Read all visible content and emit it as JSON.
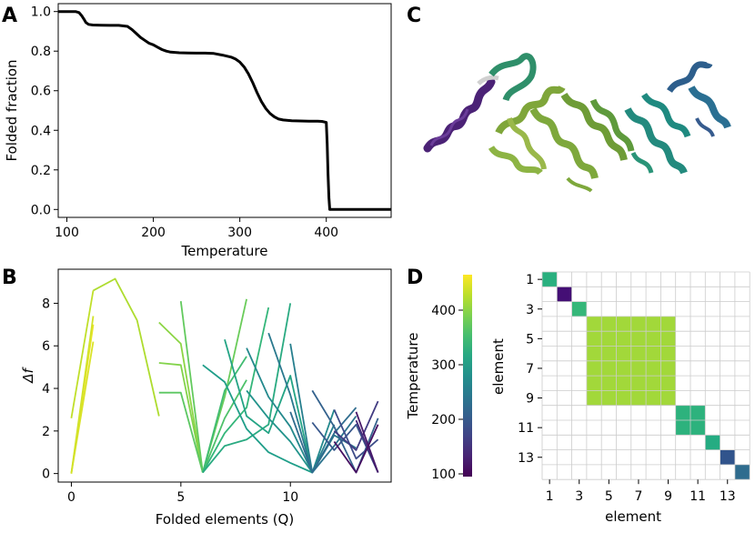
{
  "panels": {
    "a": "A",
    "b": "B",
    "c": "C",
    "d": "D"
  },
  "chart_data": [
    {
      "panel": "A",
      "type": "line",
      "title": "",
      "xlabel": "Temperature",
      "ylabel": "Folded fraction",
      "xlim": [
        90,
        475
      ],
      "ylim": [
        -0.04,
        1.04
      ],
      "xticks": [
        100,
        200,
        300,
        400
      ],
      "yticks": [
        0.0,
        0.2,
        0.4,
        0.6,
        0.8,
        1.0
      ],
      "series": [
        {
          "name": "folded fraction",
          "color": "#000000",
          "x": [
            90,
            110,
            114,
            117,
            120,
            122,
            125,
            130,
            140,
            150,
            160,
            170,
            175,
            180,
            185,
            190,
            195,
            200,
            205,
            210,
            215,
            220,
            230,
            240,
            250,
            260,
            270,
            280,
            290,
            295,
            300,
            305,
            310,
            315,
            320,
            325,
            330,
            335,
            340,
            345,
            350,
            360,
            370,
            380,
            390,
            395,
            400,
            401,
            402,
            403,
            404,
            420,
            450,
            475
          ],
          "y": [
            1.0,
            1.0,
            0.995,
            0.98,
            0.96,
            0.945,
            0.935,
            0.932,
            0.931,
            0.93,
            0.93,
            0.925,
            0.91,
            0.89,
            0.87,
            0.855,
            0.84,
            0.832,
            0.82,
            0.808,
            0.8,
            0.795,
            0.792,
            0.791,
            0.79,
            0.79,
            0.788,
            0.78,
            0.77,
            0.76,
            0.745,
            0.72,
            0.685,
            0.64,
            0.59,
            0.545,
            0.51,
            0.485,
            0.468,
            0.457,
            0.452,
            0.448,
            0.447,
            0.446,
            0.446,
            0.445,
            0.44,
            0.33,
            0.18,
            0.06,
            0.0,
            0.0,
            0.0,
            0.0
          ]
        }
      ]
    },
    {
      "panel": "B",
      "type": "line",
      "title": "",
      "xlabel": "Folded elements (Q)",
      "ylabel": "Δf",
      "xlim": [
        -0.6,
        14.6
      ],
      "ylim": [
        -0.4,
        9.6
      ],
      "xticks": [
        0,
        5,
        10
      ],
      "yticks": [
        0,
        2,
        4,
        6,
        8
      ],
      "colorbar": {
        "label": "Temperature",
        "range": [
          95,
          465
        ],
        "ticks": [
          100,
          200,
          300,
          400
        ],
        "colormap": "viridis"
      },
      "segments": [
        {
          "t": 455,
          "x": [
            0,
            1
          ],
          "y": [
            0,
            7.0
          ]
        },
        {
          "t": 445,
          "x": [
            0,
            1
          ],
          "y": [
            0,
            6.2
          ]
        },
        {
          "t": 440,
          "x": [
            0,
            1
          ],
          "y": [
            0,
            7.4
          ]
        },
        {
          "t": 430,
          "x": [
            0,
            1
          ],
          "y": [
            2.6,
            8.6
          ]
        },
        {
          "t": 420,
          "x": [
            1,
            2,
            3,
            4
          ],
          "y": [
            8.6,
            9.15,
            7.2,
            2.7
          ]
        },
        {
          "t": 400,
          "x": [
            4,
            5,
            6
          ],
          "y": [
            7.1,
            6.1,
            0.05
          ]
        },
        {
          "t": 395,
          "x": [
            4,
            5,
            6
          ],
          "y": [
            5.2,
            5.1,
            0.05
          ]
        },
        {
          "t": 380,
          "x": [
            6,
            7,
            8
          ],
          "y": [
            0.05,
            3.6,
            8.2
          ]
        },
        {
          "t": 375,
          "x": [
            5,
            6
          ],
          "y": [
            8.1,
            0.05
          ]
        },
        {
          "t": 370,
          "x": [
            4,
            5,
            6
          ],
          "y": [
            3.8,
            3.8,
            0.05
          ]
        },
        {
          "t": 360,
          "x": [
            6,
            7,
            8
          ],
          "y": [
            0.05,
            2.6,
            4.4
          ]
        },
        {
          "t": 350,
          "x": [
            6,
            7,
            8
          ],
          "y": [
            0.05,
            3.9,
            5.5
          ]
        },
        {
          "t": 340,
          "x": [
            6,
            7,
            8,
            9
          ],
          "y": [
            0.05,
            1.9,
            3.1,
            7.8
          ]
        },
        {
          "t": 320,
          "x": [
            6,
            7,
            8,
            9,
            10
          ],
          "y": [
            0.05,
            1.3,
            1.6,
            2.3,
            8.0
          ]
        },
        {
          "t": 300,
          "x": [
            6,
            7,
            8,
            9,
            10,
            11
          ],
          "y": [
            5.1,
            4.3,
            2.1,
            1.0,
            0.5,
            0.05
          ]
        },
        {
          "t": 310,
          "x": [
            7,
            8,
            9,
            10,
            11
          ],
          "y": [
            6.3,
            2.7,
            1.9,
            4.6,
            0.05
          ]
        },
        {
          "t": 285,
          "x": [
            8,
            9,
            10,
            11
          ],
          "y": [
            3.9,
            2.6,
            1.5,
            0.05
          ]
        },
        {
          "t": 270,
          "x": [
            8,
            9,
            10,
            11,
            12
          ],
          "y": [
            5.9,
            3.6,
            2.2,
            0.05,
            3.0
          ]
        },
        {
          "t": 255,
          "x": [
            10,
            11,
            12
          ],
          "y": [
            6.1,
            0.05,
            2.3
          ]
        },
        {
          "t": 245,
          "x": [
            9,
            10,
            11,
            12,
            13
          ],
          "y": [
            6.6,
            3.7,
            0.05,
            1.8,
            1.2
          ]
        },
        {
          "t": 235,
          "x": [
            11,
            12,
            13
          ],
          "y": [
            0.05,
            1.3,
            2.7
          ]
        },
        {
          "t": 225,
          "x": [
            10,
            11,
            12,
            13
          ],
          "y": [
            2.9,
            0.05,
            1.9,
            3.1
          ]
        },
        {
          "t": 210,
          "x": [
            11,
            12,
            13,
            14
          ],
          "y": [
            3.9,
            2.2,
            0.05,
            2.6
          ]
        },
        {
          "t": 195,
          "x": [
            11,
            12,
            13,
            14
          ],
          "y": [
            2.4,
            1.1,
            2.3,
            0.05
          ]
        },
        {
          "t": 180,
          "x": [
            12,
            13,
            14
          ],
          "y": [
            3.0,
            0.7,
            1.6
          ]
        },
        {
          "t": 160,
          "x": [
            12,
            13,
            14
          ],
          "y": [
            2.0,
            1.1,
            3.4
          ]
        },
        {
          "t": 140,
          "x": [
            13,
            14
          ],
          "y": [
            2.5,
            0.05
          ]
        },
        {
          "t": 120,
          "x": [
            13,
            14
          ],
          "y": [
            2.9,
            0.05
          ]
        },
        {
          "t": 110,
          "x": [
            12,
            13,
            14
          ],
          "y": [
            1.5,
            0.05,
            2.3
          ]
        }
      ]
    },
    {
      "panel": "D",
      "type": "heatmap",
      "title": "",
      "xlabel": "element",
      "ylabel": "element",
      "size": 14,
      "xticks": [
        1,
        3,
        5,
        7,
        9,
        11,
        13
      ],
      "yticks": [
        1,
        3,
        5,
        7,
        9,
        11,
        13
      ],
      "blocks": [
        {
          "from": 1,
          "to": 1,
          "color": "#2ab07f"
        },
        {
          "from": 2,
          "to": 2,
          "color": "#440f75"
        },
        {
          "from": 3,
          "to": 3,
          "color": "#35b779"
        },
        {
          "from": 4,
          "to": 9,
          "color": "#a2d83a"
        },
        {
          "from": 10,
          "to": 11,
          "color": "#2db27d"
        },
        {
          "from": 12,
          "to": 12,
          "color": "#25ac82"
        },
        {
          "from": 13,
          "to": 13,
          "color": "#31548c"
        },
        {
          "from": 14,
          "to": 14,
          "color": "#2f6c8e"
        }
      ]
    }
  ]
}
